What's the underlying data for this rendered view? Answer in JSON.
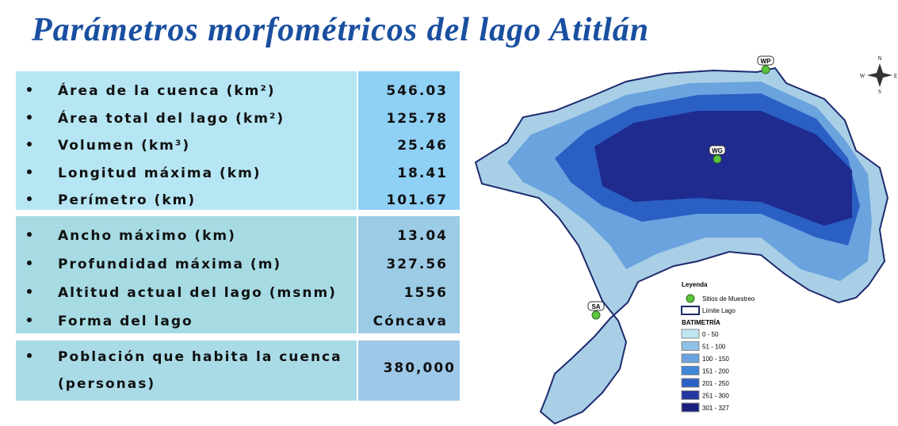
{
  "header": {
    "title": "Parámetros morfométricos del lago Atitlán"
  },
  "tables": [
    {
      "rows": [
        [
          "Área de la cuenca (km²)",
          "546.03"
        ],
        [
          "Área total del lago  (km²)",
          "125.78"
        ],
        [
          "Volumen (km³)",
          "25.46"
        ],
        [
          "Longitud máxima (km)",
          "18.41"
        ],
        [
          "Perímetro (km)",
          "101.67"
        ]
      ]
    },
    {
      "rows": [
        [
          "Ancho máximo (km)",
          "13.04"
        ],
        [
          "Profundidad máxima (m)",
          "327.56"
        ],
        [
          "Altitud actual del lago (msnm)",
          "1556"
        ],
        [
          "Forma del lago",
          "Cóncava"
        ]
      ]
    },
    {
      "rows": [
        [
          "Población que habita la cuenca (personas)",
          "380,000"
        ]
      ]
    }
  ],
  "map": {
    "sites": [
      "WP",
      "WG",
      "SA"
    ],
    "compass": [
      "N",
      "E",
      "S",
      "W"
    ],
    "legend": {
      "title": "Leyenda",
      "items": [
        "Sitios de Muestreo",
        "Límite Lago"
      ],
      "bathymetry_title": "BATIMETRÍA",
      "classes": [
        {
          "label": "0 - 50",
          "color": "#bfe6f2"
        },
        {
          "label": "51 - 100",
          "color": "#8ec1e6"
        },
        {
          "label": "100 - 150",
          "color": "#6aa3dd"
        },
        {
          "label": "151 - 200",
          "color": "#3f86d8"
        },
        {
          "label": "201 - 250",
          "color": "#2a5fc4"
        },
        {
          "label": "251 - 300",
          "color": "#2337a2"
        },
        {
          "label": "301 - 327",
          "color": "#1a1f7e"
        }
      ]
    }
  }
}
